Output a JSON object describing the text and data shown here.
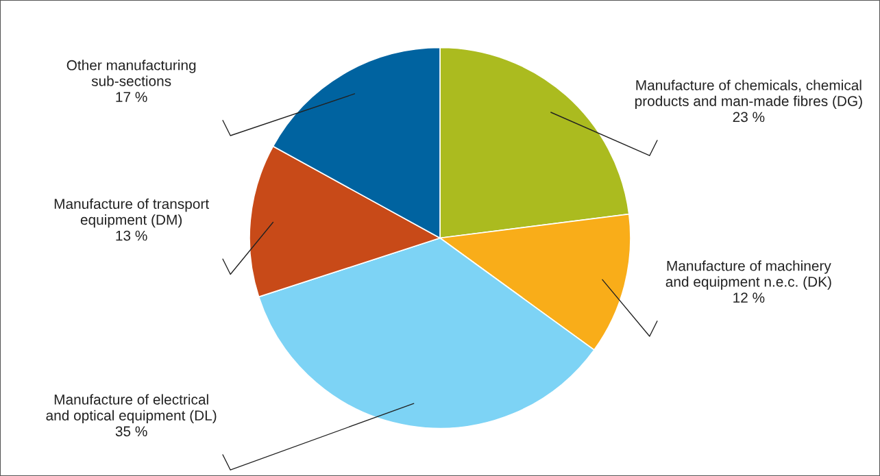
{
  "chart_data": {
    "type": "pie",
    "categories": [
      "Manufacture of chemicals, chemical\nproducts and man-made fibres (DG)",
      "Manufacture of machinery\nand equipment n.e.c. (DK)",
      "Manufacture of electrical\nand optical equipment (DL)",
      "Manufacture of transport\nequipment (DM)",
      "Other manufacturing\nsub-sections"
    ],
    "values": [
      23,
      12,
      35,
      13,
      17
    ],
    "colors": [
      "#abbb1f",
      "#f9ad19",
      "#7dd3f5",
      "#c84a18",
      "#0063a0"
    ],
    "value_labels": [
      "23 %",
      "12 %",
      "35 %",
      "13 %",
      "17 %"
    ]
  }
}
